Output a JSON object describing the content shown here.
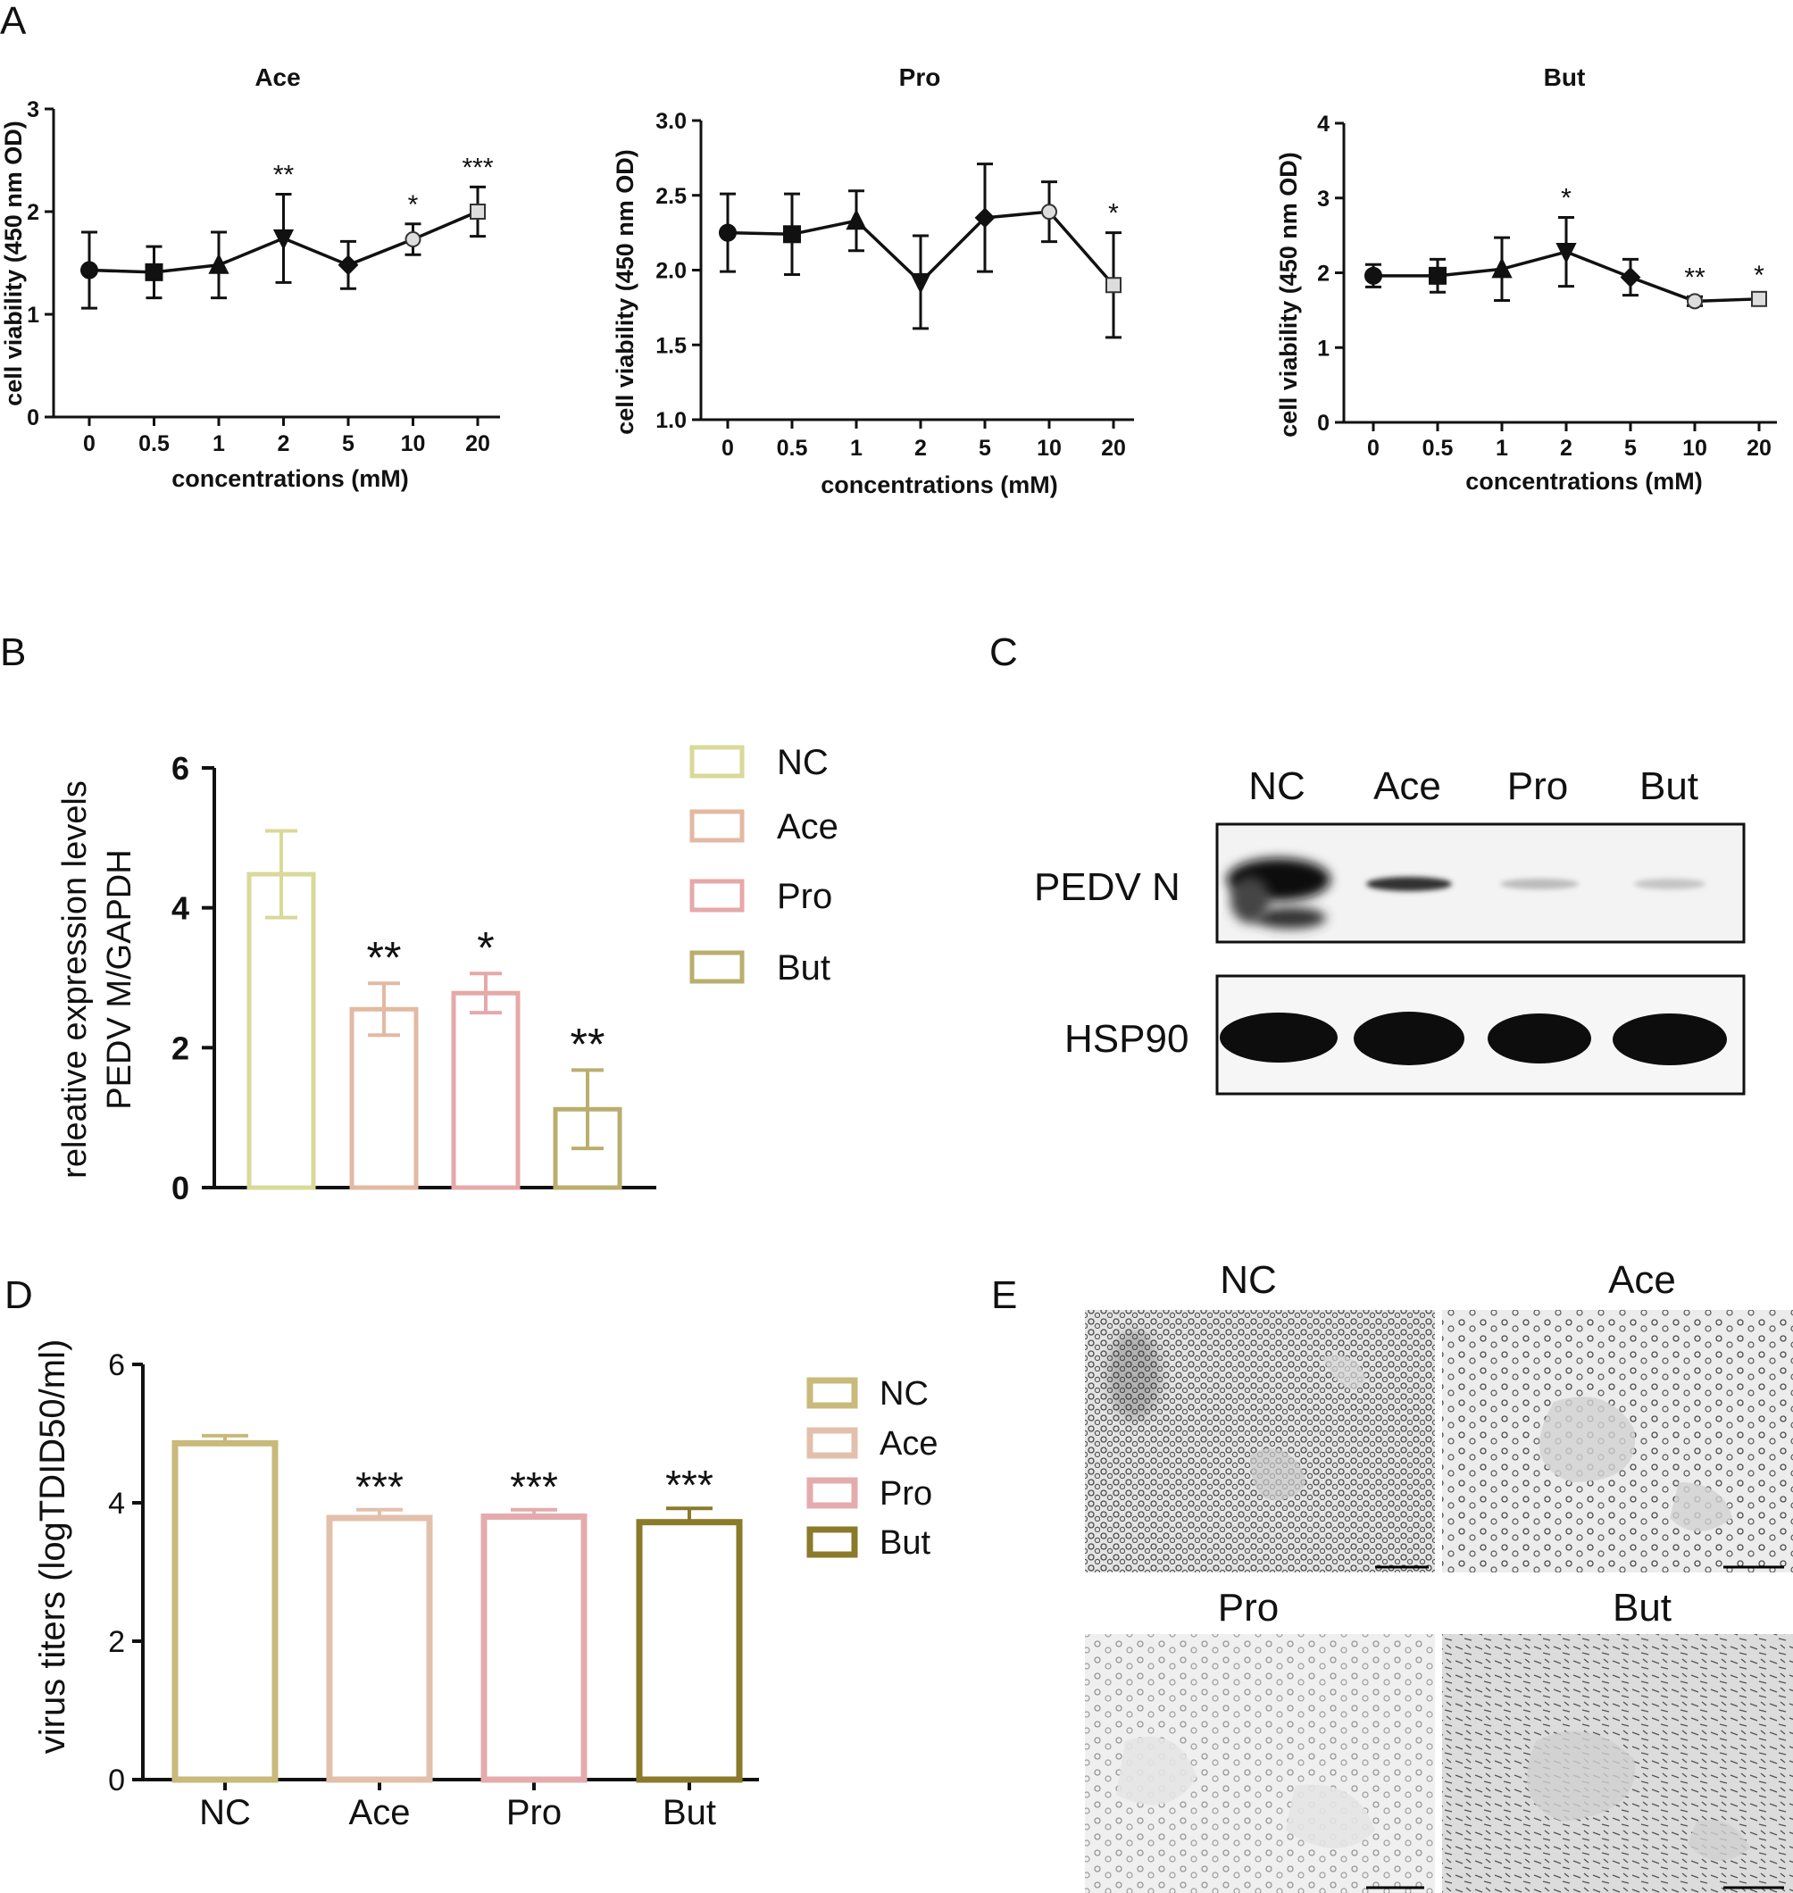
{
  "panel_labels": [
    "A",
    "B",
    "C",
    "D",
    "E"
  ],
  "chart_data": [
    {
      "type": "line",
      "panel": "A",
      "title": "Ace",
      "xlabel": "concentrations (mM)",
      "ylabel": "cell viability (450 nm OD)",
      "categories": [
        "0",
        "0.5",
        "1",
        "2",
        "5",
        "10",
        "20"
      ],
      "values": [
        1.43,
        1.41,
        1.48,
        1.74,
        1.48,
        1.73,
        2.0
      ],
      "errors": [
        0.37,
        0.25,
        0.32,
        0.43,
        0.23,
        0.15,
        0.24
      ],
      "ylim": [
        0,
        3
      ],
      "yticks": [
        "0",
        "1",
        "2",
        "3"
      ],
      "annotations": [
        "",
        "",
        "",
        "**",
        "",
        "*",
        "***"
      ],
      "markers": [
        "circle",
        "square",
        "triangle-up",
        "triangle-down",
        "diamond",
        "open-circle",
        "open-square"
      ]
    },
    {
      "type": "line",
      "panel": "A",
      "title": "Pro",
      "xlabel": "concentrations (mM)",
      "ylabel": "cell viability (450 nm OD)",
      "categories": [
        "0",
        "0.5",
        "1",
        "2",
        "5",
        "10",
        "20"
      ],
      "values": [
        2.25,
        2.24,
        2.33,
        1.92,
        2.35,
        2.39,
        1.9
      ],
      "errors": [
        0.26,
        0.27,
        0.2,
        0.31,
        0.36,
        0.2,
        0.35
      ],
      "ylim": [
        1.0,
        3.0
      ],
      "yticks": [
        "1.0",
        "1.5",
        "2.0",
        "2.5",
        "3.0"
      ],
      "annotations": [
        "",
        "",
        "",
        "",
        "",
        "",
        "*"
      ],
      "markers": [
        "circle",
        "square",
        "triangle-up",
        "triangle-down",
        "diamond",
        "open-circle",
        "open-square"
      ]
    },
    {
      "type": "line",
      "panel": "A",
      "title": "But",
      "xlabel": "concentrations (mM)",
      "ylabel": "cell viability (450 nm OD)",
      "categories": [
        "0",
        "0.5",
        "1",
        "2",
        "5",
        "10",
        "20"
      ],
      "values": [
        1.96,
        1.96,
        2.05,
        2.28,
        1.94,
        1.62,
        1.65
      ],
      "errors": [
        0.15,
        0.22,
        0.42,
        0.46,
        0.24,
        0.06,
        0.06
      ],
      "ylim": [
        0,
        4
      ],
      "yticks": [
        "0",
        "1",
        "2",
        "3",
        "4"
      ],
      "annotations": [
        "",
        "",
        "",
        "*",
        "",
        "**",
        "*"
      ],
      "markers": [
        "circle",
        "square",
        "triangle-up",
        "triangle-down",
        "diamond",
        "open-circle",
        "open-square"
      ]
    },
    {
      "type": "bar",
      "panel": "B",
      "ylabel": [
        "releative expression levels",
        "PEDV M/GAPDH"
      ],
      "categories": [
        "NC",
        "Ace",
        "Pro",
        "But"
      ],
      "values": [
        4.48,
        2.55,
        2.78,
        1.12
      ],
      "errors": [
        0.62,
        0.37,
        0.28,
        0.56
      ],
      "ylim": [
        0,
        6
      ],
      "yticks": [
        "0",
        "2",
        "4",
        "6"
      ],
      "annotations": [
        "",
        "**",
        "*",
        "**"
      ],
      "colors": [
        "#d9d99a",
        "#e3b9a2",
        "#e6a8a8",
        "#b9ae6e"
      ],
      "legend": [
        "NC",
        "Ace",
        "Pro",
        "But"
      ]
    },
    {
      "type": "bar",
      "panel": "D",
      "ylabel": "virus titers (logTDID50/ml)",
      "categories": [
        "NC",
        "Ace",
        "Pro",
        "But"
      ],
      "values": [
        4.86,
        3.78,
        3.8,
        3.72
      ],
      "errors": [
        0.11,
        0.12,
        0.1,
        0.2
      ],
      "ylim": [
        0,
        6
      ],
      "yticks": [
        "0",
        "2",
        "4",
        "6"
      ],
      "annotations": [
        "",
        "***",
        "***",
        "***"
      ],
      "colors": [
        "#c9b97a",
        "#e3c0ac",
        "#e4abad",
        "#8a7a2a"
      ],
      "legend": [
        "NC",
        "Ace",
        "Pro",
        "But"
      ]
    }
  ],
  "western_blot": {
    "panel": "C",
    "lanes": [
      "NC",
      "Ace",
      "Pro",
      "But"
    ],
    "rows": [
      "PEDV N",
      "HSP90"
    ]
  },
  "micrographs": {
    "panel": "E",
    "labels": [
      "NC",
      "Ace",
      "Pro",
      "But"
    ]
  }
}
